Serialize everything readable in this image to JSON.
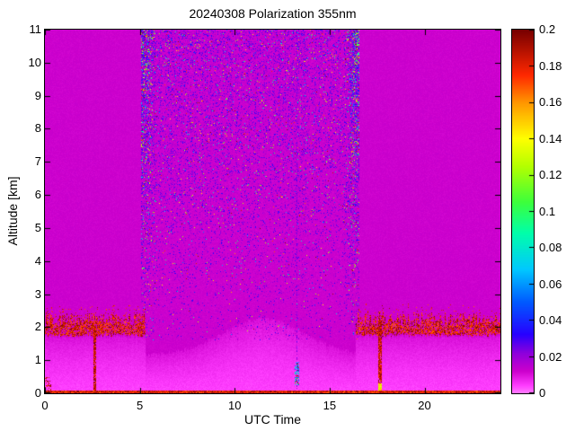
{
  "chart_data": {
    "type": "heatmap",
    "title": "20240308 Polarization 355nm",
    "xlabel": "UTC Time",
    "ylabel": "Altitude [km]",
    "xlim": [
      0,
      24
    ],
    "ylim": [
      0,
      11
    ],
    "xticks": [
      0,
      5,
      10,
      15,
      20
    ],
    "yticks": [
      0,
      1,
      2,
      3,
      4,
      5,
      6,
      7,
      8,
      9,
      10,
      11
    ],
    "grid": false,
    "colorbar": {
      "min": 0,
      "max": 0.2,
      "ticks": [
        0,
        0.02,
        0.04,
        0.06,
        0.08,
        0.1,
        0.12,
        0.14,
        0.16,
        0.18,
        0.2
      ],
      "position": "right"
    },
    "colormap": [
      [
        0.0,
        "#ff78ff"
      ],
      [
        0.004,
        "#ff3cff"
      ],
      [
        0.012,
        "#cc00cc"
      ],
      [
        0.022,
        "#8c00dc"
      ],
      [
        0.032,
        "#2800ff"
      ],
      [
        0.05,
        "#005aff"
      ],
      [
        0.068,
        "#00c8ff"
      ],
      [
        0.088,
        "#00ffaa"
      ],
      [
        0.105,
        "#3cff3c"
      ],
      [
        0.125,
        "#b4ff00"
      ],
      [
        0.14,
        "#ffff00"
      ],
      [
        0.16,
        "#ff9600"
      ],
      [
        0.175,
        "#ff2800"
      ],
      [
        0.2,
        "#780000"
      ]
    ],
    "field_model": {
      "seed": 20240308,
      "background_value": 0.012,
      "boundary_layer": {
        "top_km": 1.15,
        "dome_center_utc": 11.5,
        "dome_sigma_h": 3.0,
        "dome_top_km": 2.25,
        "surface_value": 0.004
      },
      "daytime_noise": {
        "x_start": 5.05,
        "x_end": 16.55,
        "y_start": 1.6,
        "edge_width": 0.8
      },
      "cloud_speckle_bands": [
        {
          "x": [
            0,
            5.3
          ],
          "y": [
            1.72,
            2.45
          ],
          "value": [
            0.165,
            0.2
          ]
        },
        {
          "x": [
            16.4,
            24
          ],
          "y": [
            1.72,
            2.45
          ],
          "value": [
            0.165,
            0.2
          ]
        }
      ],
      "vertical_stripes": [
        {
          "x": 2.62,
          "width": 0.16,
          "y": [
            0,
            2.05
          ],
          "value": [
            0.17,
            0.2
          ]
        },
        {
          "x": 17.66,
          "width": 0.2,
          "y": [
            0,
            2.2
          ],
          "value": [
            0.17,
            0.2
          ]
        },
        {
          "x": 13.28,
          "width": 0.09,
          "y": [
            0,
            11
          ],
          "value": [
            0.016,
            0.028
          ]
        }
      ],
      "low_blob": {
        "x": [
          13.18,
          13.42
        ],
        "y": [
          0.25,
          0.95
        ],
        "value": [
          0.035,
          0.095
        ]
      },
      "surface_line": {
        "y": [
          0,
          0.09
        ],
        "value": [
          0.165,
          0.2
        ]
      }
    }
  }
}
